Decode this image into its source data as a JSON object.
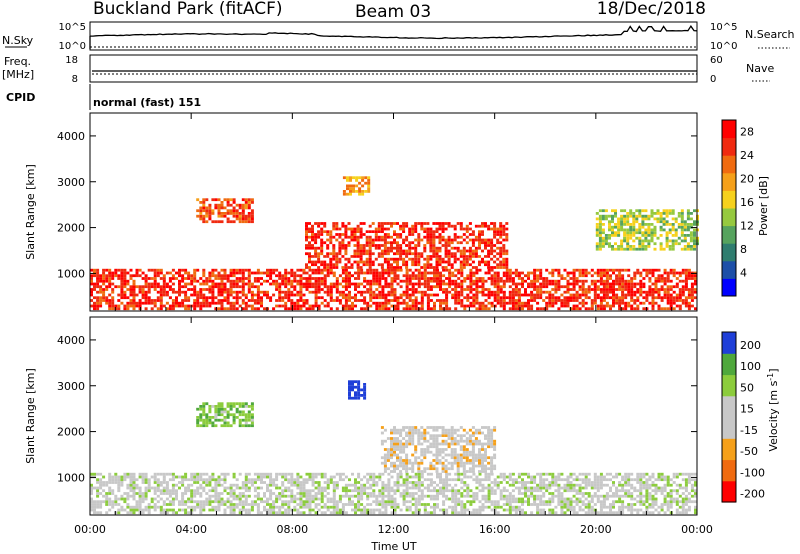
{
  "header": {
    "station": "Buckland Park (fitACF)",
    "beam": "Beam 03",
    "date": "18/Dec/2018"
  },
  "strips": {
    "nsky_label": "N.Sky",
    "nsky_ticks": [
      "10^5",
      "10^0"
    ],
    "nsearch_label": "N.Search",
    "nsearch_ticks": [
      "10^5",
      "10^0"
    ],
    "freq_label": "Freq.",
    "freq_unit": "[MHz]",
    "freq_ticks": [
      "18",
      "8"
    ],
    "nave_label": "Nave",
    "nave_ticks": [
      "60",
      "0"
    ],
    "cpid_label": "CPID",
    "cpid_value": "normal (fast) 151"
  },
  "chart_data": [
    {
      "type": "heatmap",
      "panel": "power",
      "ylabel": "Slant Range [km]",
      "xlabel": "Time UT",
      "xticks": [
        "00:00",
        "04:00",
        "08:00",
        "12:00",
        "16:00",
        "20:00",
        "00:00"
      ],
      "xlim_hours": [
        0,
        24
      ],
      "yticks": [
        1000,
        2000,
        3000,
        4000
      ],
      "ylim": [
        180,
        4500
      ],
      "colorbar": {
        "label": "Power [dB]",
        "ticks": [
          28,
          24,
          20,
          16,
          12,
          8,
          4
        ],
        "range": [
          0,
          30
        ],
        "colors": [
          "#0000ff",
          "#1d4fa8",
          "#2f7d6f",
          "#56a35e",
          "#96c93f",
          "#f6d11d",
          "#f5a01a",
          "#f06b10",
          "#f02a10",
          "#ff0000"
        ]
      },
      "echo_regions": [
        {
          "t": [
            0.0,
            24.0
          ],
          "r": [
            200,
            1100
          ],
          "value": 26
        },
        {
          "t": [
            4.2,
            6.4
          ],
          "r": [
            2100,
            2600
          ],
          "value": 24
        },
        {
          "t": [
            8.5,
            16.5
          ],
          "r": [
            1100,
            2100
          ],
          "value": 26
        },
        {
          "t": [
            10.0,
            11.0
          ],
          "r": [
            2700,
            3100
          ],
          "value": 20
        },
        {
          "t": [
            20.0,
            24.0
          ],
          "r": [
            1500,
            2400
          ],
          "value": 14
        }
      ]
    },
    {
      "type": "heatmap",
      "panel": "velocity",
      "ylabel": "Slant Range [km]",
      "xlabel": "Time UT",
      "xticks": [
        "00:00",
        "04:00",
        "08:00",
        "12:00",
        "16:00",
        "20:00",
        "00:00"
      ],
      "xlim_hours": [
        0,
        24
      ],
      "yticks": [
        1000,
        2000,
        3000,
        4000
      ],
      "ylim": [
        180,
        4500
      ],
      "colorbar": {
        "label": "Velocity [m s^-1]",
        "ticks": [
          "200",
          "100",
          "50",
          "15",
          "-15",
          "-50",
          "-100",
          "-200"
        ],
        "range": [
          -250,
          250
        ],
        "colors": [
          "#ff0000",
          "#f06b10",
          "#f5a01a",
          "#c8c8c8",
          "#c8c8c8",
          "#8ccc3c",
          "#4fa83c",
          "#1f3fd8"
        ]
      },
      "echo_regions": [
        {
          "t": [
            0.0,
            24.0
          ],
          "r": [
            200,
            1100
          ],
          "value": 0
        },
        {
          "t": [
            4.2,
            6.4
          ],
          "r": [
            2100,
            2600
          ],
          "value": 40
        },
        {
          "t": [
            10.2,
            10.8
          ],
          "r": [
            2700,
            3100
          ],
          "value": 180
        },
        {
          "t": [
            11.5,
            16.0
          ],
          "r": [
            1100,
            2100
          ],
          "value": -30
        }
      ]
    }
  ]
}
